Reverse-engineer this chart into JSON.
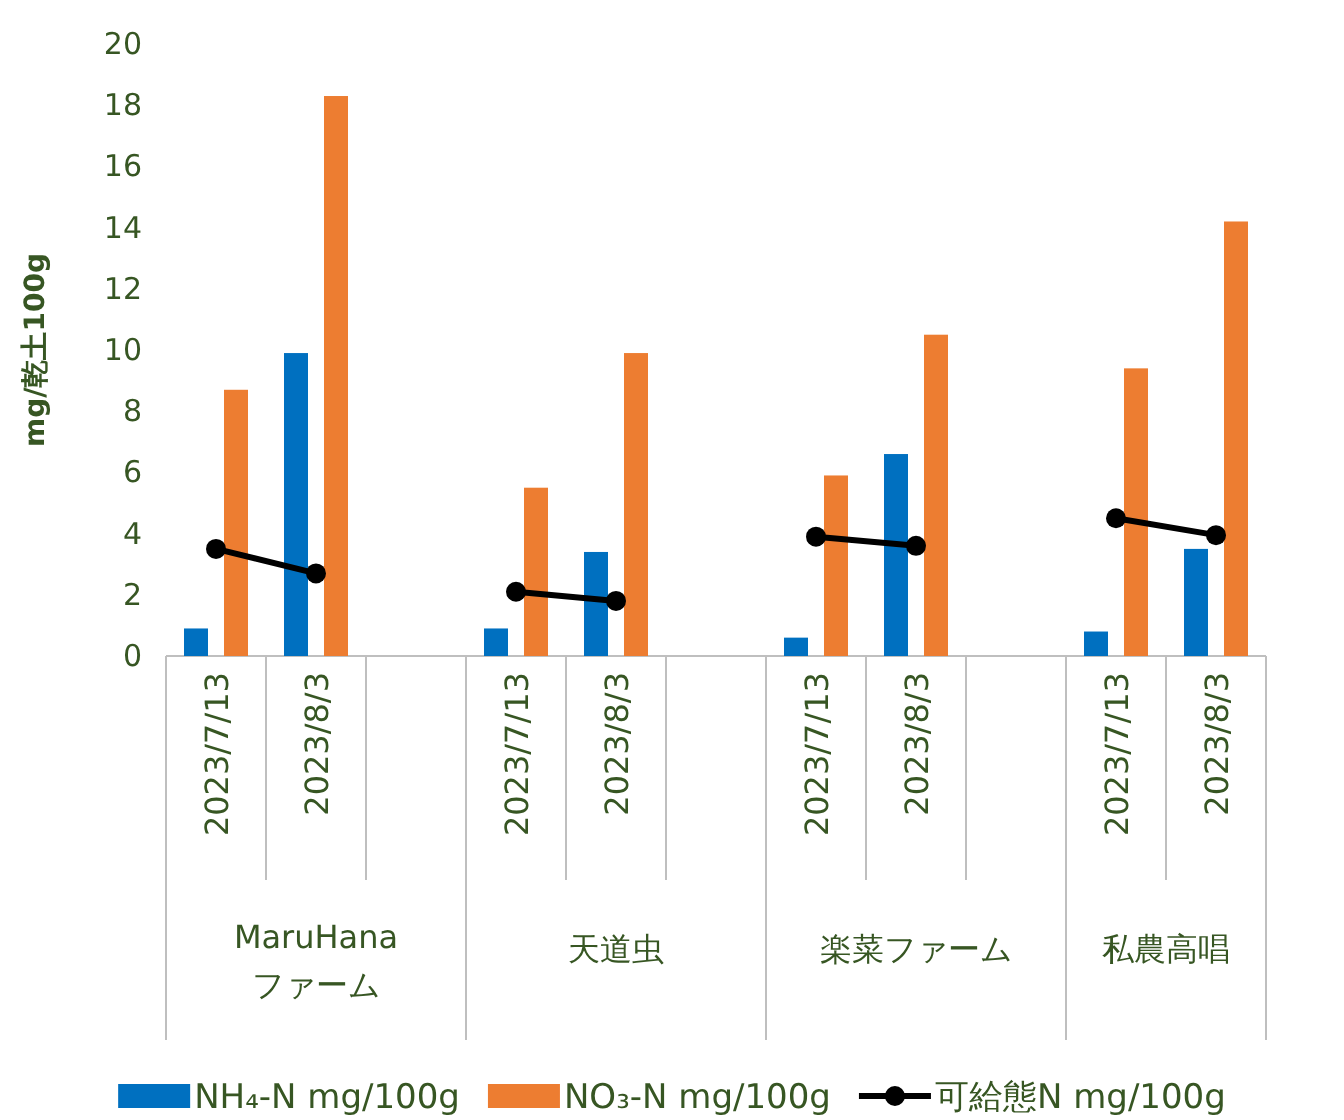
{
  "chart_data": {
    "type": "bar",
    "ylabel": "mg/乾土100g",
    "categories": [
      "2023/7/13",
      "2023/8/3",
      null,
      "2023/7/13",
      "2023/8/3",
      null,
      "2023/7/13",
      "2023/8/3",
      null,
      "2023/7/13",
      "2023/8/3"
    ],
    "annotations": [
      "MaruHana\nファーム",
      "天道虫",
      "楽菜ファーム",
      "私農高唱"
    ],
    "series": [
      {
        "name": "NH₄-N mg/100g",
        "color": "#0070c0",
        "values": [
          0.9,
          9.9,
          null,
          0.9,
          3.4,
          null,
          0.6,
          6.6,
          null,
          0.8,
          3.5
        ]
      },
      {
        "name": "NO₃-N mg/100g",
        "color": "#ed7d31",
        "values": [
          8.7,
          18.3,
          null,
          5.5,
          9.9,
          null,
          5.9,
          10.5,
          null,
          9.4,
          14.2
        ]
      },
      {
        "name": "可給態N mg/100g",
        "type": "line",
        "color": "#000000",
        "marker": "circle",
        "values": [
          3.5,
          2.7,
          null,
          2.1,
          1.8,
          null,
          3.9,
          3.6,
          null,
          4.5,
          3.95
        ]
      }
    ],
    "ylim": [
      0,
      20
    ],
    "yticks": [
      0,
      2,
      4,
      6,
      8,
      10,
      12,
      14,
      16,
      18,
      20
    ],
    "grid": false,
    "legend": "bottom"
  }
}
